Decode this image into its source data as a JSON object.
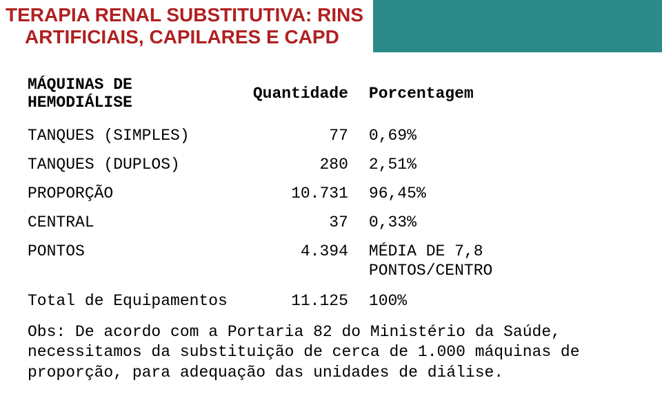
{
  "colors": {
    "header_bg": "#2d8a8a",
    "title_text": "#b02020",
    "body_text": "#000000",
    "page_bg": "#ffffff"
  },
  "typography": {
    "title_font": "Arial",
    "title_size_pt": 21,
    "title_weight": "bold",
    "body_font": "Courier New",
    "body_size_pt": 17
  },
  "title": {
    "line1": "TERAPIA RENAL SUBSTITUTIVA: RINS",
    "line2": "ARTIFICIAIS, CAPILARES E CAPD"
  },
  "table": {
    "header": {
      "col1": "MÁQUINAS DE HEMODIÁLISE",
      "col2": "Quantidade",
      "col3": "Porcentagem"
    },
    "rows": [
      {
        "label": "TANQUES (SIMPLES)",
        "qty": "77",
        "pct": "0,69%"
      },
      {
        "label": "TANQUES (DUPLOS)",
        "qty": "280",
        "pct": "2,51%"
      },
      {
        "label": "PROPORÇÃO",
        "qty": "10.731",
        "pct": "96,45%"
      },
      {
        "label": "CENTRAL",
        "qty": "37",
        "pct": "0,33%"
      },
      {
        "label": "PONTOS",
        "qty": "4.394",
        "pct": "MÉDIA DE 7,8 PONTOS/CENTRO"
      },
      {
        "label": "Total de Equipamentos",
        "qty": "11.125",
        "pct": "100%"
      }
    ]
  },
  "note": "Obs: De acordo com a Portaria 82 do Ministério da Saúde, necessitamos da substituição de cerca de 1.000 máquinas de proporção, para adequação das unidades de diálise."
}
